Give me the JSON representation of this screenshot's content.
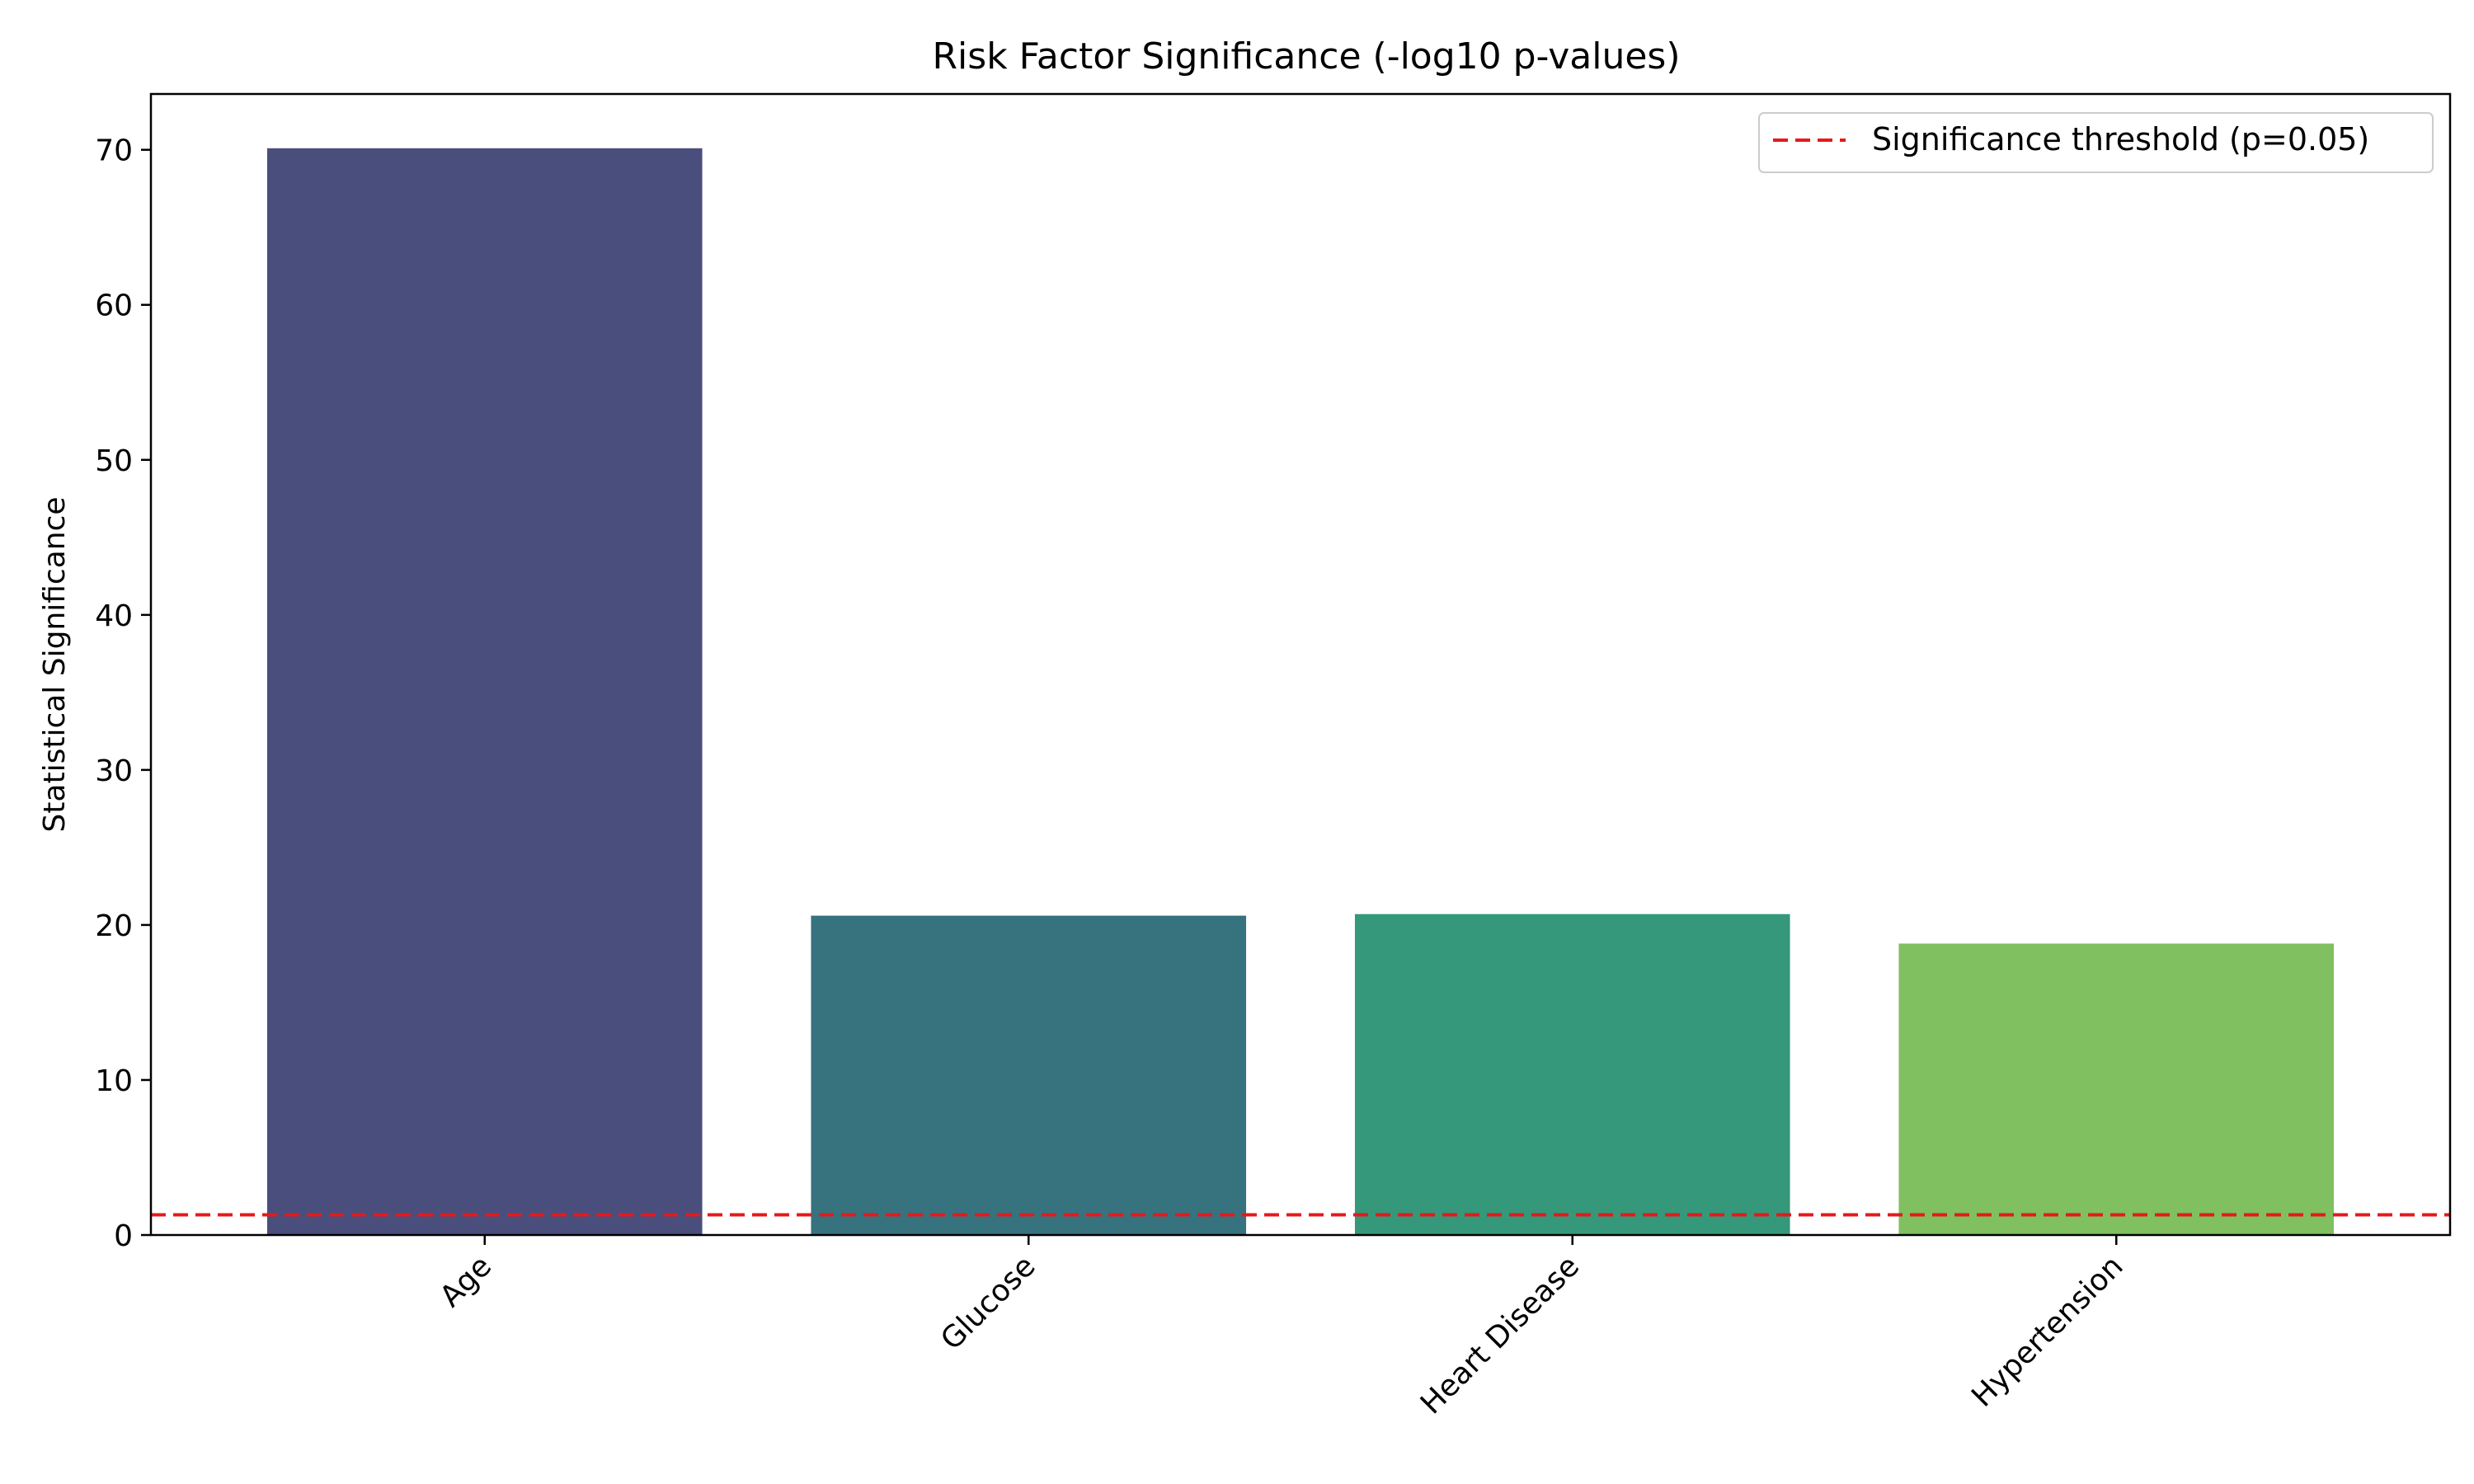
{
  "chart_data": {
    "type": "bar",
    "title": "Risk Factor Significance (-log10 p-values)",
    "xlabel": "",
    "ylabel": "Statistical Significance",
    "categories": [
      "Age",
      "Glucose",
      "Heart Disease",
      "Hypertension"
    ],
    "values": [
      70.1,
      20.6,
      20.7,
      18.8
    ],
    "colors": [
      "#4a4e7c",
      "#37727f",
      "#35987a",
      "#80c060"
    ],
    "ylim": [
      0,
      73.6
    ],
    "yticks": [
      0,
      10,
      20,
      30,
      40,
      50,
      60,
      70
    ],
    "threshold": {
      "value": 1.301,
      "label": "Significance threshold (p=0.05)",
      "color": "#e41a1c"
    },
    "legend_position": "top-right",
    "grid": false
  }
}
